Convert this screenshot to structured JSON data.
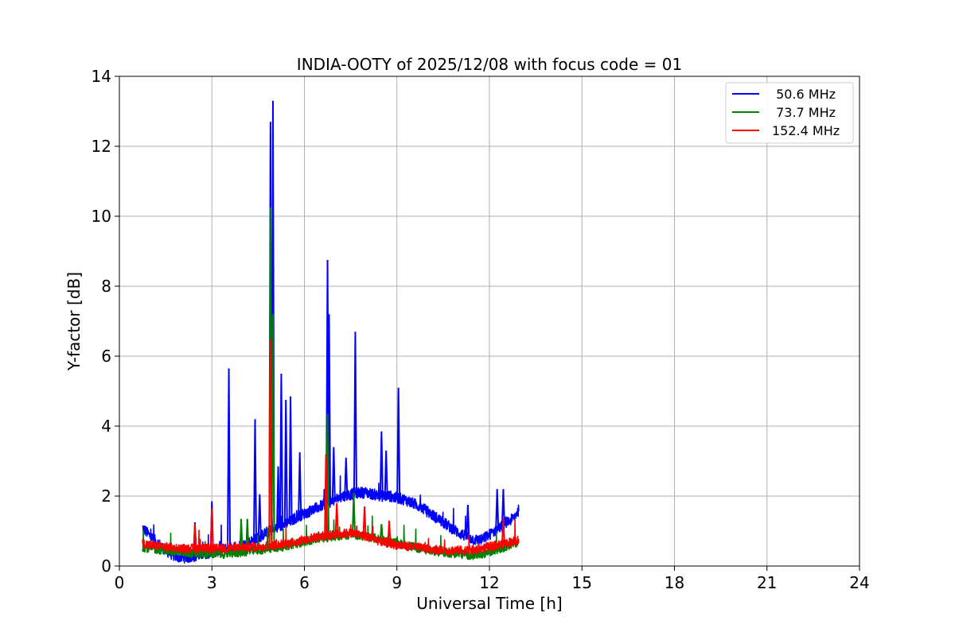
{
  "chart_data": {
    "type": "line",
    "title": "INDIA-OOTY of 2025/12/08 with focus code = 01",
    "xlabel": "Universal Time [h]",
    "ylabel": "Y-factor [dB]",
    "xlim": [
      0,
      24
    ],
    "ylim": [
      0,
      14
    ],
    "xticks": [
      0,
      3,
      6,
      9,
      12,
      15,
      18,
      21,
      24
    ],
    "yticks": [
      0,
      2,
      4,
      6,
      8,
      10,
      12,
      14
    ],
    "grid": true,
    "legend_position": "top-right",
    "series": [
      {
        "name": " 50.6 MHz",
        "color": "#0000ff",
        "x": [
          0.75,
          1.0,
          1.25,
          1.5,
          1.75,
          2.0,
          2.25,
          2.5,
          2.75,
          3.0,
          3.25,
          3.5,
          3.75,
          4.0,
          4.25,
          4.5,
          4.75,
          5.0,
          5.25,
          5.5,
          5.75,
          6.0,
          6.25,
          6.5,
          6.75,
          7.0,
          7.25,
          7.5,
          7.75,
          8.0,
          8.25,
          8.5,
          8.75,
          9.0,
          9.25,
          9.5,
          9.75,
          10.0,
          10.25,
          10.5,
          10.75,
          11.0,
          11.25,
          11.5,
          11.75,
          12.0,
          12.25,
          12.5,
          12.75,
          12.95
        ],
        "y": [
          1.1,
          0.85,
          0.65,
          0.45,
          0.3,
          0.25,
          0.25,
          0.3,
          0.35,
          0.4,
          0.45,
          0.5,
          0.55,
          0.6,
          0.7,
          0.8,
          0.95,
          1.05,
          1.15,
          1.25,
          1.4,
          1.5,
          1.6,
          1.7,
          1.8,
          1.9,
          2.0,
          2.05,
          2.1,
          2.1,
          2.05,
          2.0,
          2.0,
          1.95,
          1.9,
          1.8,
          1.7,
          1.55,
          1.4,
          1.25,
          1.1,
          0.95,
          0.85,
          0.75,
          0.75,
          0.9,
          1.05,
          1.2,
          1.35,
          1.6
        ],
        "spikes": [
          {
            "x": 2.45,
            "y": 1.25
          },
          {
            "x": 3.0,
            "y": 1.85
          },
          {
            "x": 3.55,
            "y": 5.65
          },
          {
            "x": 4.4,
            "y": 4.2
          },
          {
            "x": 4.55,
            "y": 2.05
          },
          {
            "x": 4.9,
            "y": 12.7
          },
          {
            "x": 4.98,
            "y": 13.3
          },
          {
            "x": 5.15,
            "y": 2.85
          },
          {
            "x": 5.25,
            "y": 5.5
          },
          {
            "x": 5.4,
            "y": 4.75
          },
          {
            "x": 5.55,
            "y": 4.85
          },
          {
            "x": 5.85,
            "y": 3.25
          },
          {
            "x": 6.75,
            "y": 8.75
          },
          {
            "x": 6.8,
            "y": 7.2
          },
          {
            "x": 6.95,
            "y": 3.4
          },
          {
            "x": 7.35,
            "y": 3.1
          },
          {
            "x": 7.65,
            "y": 6.7
          },
          {
            "x": 8.5,
            "y": 3.85
          },
          {
            "x": 8.65,
            "y": 3.3
          },
          {
            "x": 9.05,
            "y": 5.1
          },
          {
            "x": 11.3,
            "y": 1.75
          },
          {
            "x": 12.25,
            "y": 2.2
          },
          {
            "x": 12.45,
            "y": 2.2
          }
        ]
      },
      {
        "name": " 73.7 MHz",
        "color": "#008000",
        "x": [
          0.75,
          1.0,
          1.5,
          2.0,
          2.5,
          3.0,
          3.5,
          4.0,
          4.5,
          5.0,
          5.5,
          6.0,
          6.5,
          7.0,
          7.5,
          8.0,
          8.5,
          9.0,
          9.5,
          10.0,
          10.5,
          11.0,
          11.5,
          12.0,
          12.5,
          12.95
        ],
        "y": [
          0.55,
          0.5,
          0.45,
          0.4,
          0.35,
          0.35,
          0.35,
          0.4,
          0.45,
          0.5,
          0.6,
          0.7,
          0.8,
          0.85,
          0.9,
          0.85,
          0.75,
          0.65,
          0.55,
          0.45,
          0.4,
          0.35,
          0.3,
          0.4,
          0.55,
          0.7
        ],
        "spikes": [
          {
            "x": 3.95,
            "y": 1.35
          },
          {
            "x": 4.15,
            "y": 1.35
          },
          {
            "x": 4.9,
            "y": 10.25
          },
          {
            "x": 4.98,
            "y": 7.2
          },
          {
            "x": 6.75,
            "y": 4.35
          },
          {
            "x": 7.6,
            "y": 2.1
          },
          {
            "x": 8.5,
            "y": 1.2
          }
        ]
      },
      {
        "name": "152.4 MHz",
        "color": "#ff0000",
        "x": [
          0.75,
          1.0,
          1.5,
          2.0,
          2.5,
          3.0,
          3.5,
          4.0,
          4.5,
          5.0,
          5.5,
          6.0,
          6.5,
          7.0,
          7.5,
          8.0,
          8.5,
          9.0,
          9.5,
          10.0,
          10.5,
          11.0,
          11.5,
          12.0,
          12.5,
          12.95
        ],
        "y": [
          0.65,
          0.6,
          0.55,
          0.5,
          0.5,
          0.5,
          0.5,
          0.55,
          0.55,
          0.6,
          0.65,
          0.75,
          0.85,
          0.9,
          0.95,
          0.85,
          0.7,
          0.6,
          0.55,
          0.5,
          0.45,
          0.45,
          0.45,
          0.55,
          0.65,
          0.75
        ],
        "spikes": [
          {
            "x": 2.45,
            "y": 1.2
          },
          {
            "x": 3.0,
            "y": 1.65
          },
          {
            "x": 4.9,
            "y": 6.5
          },
          {
            "x": 6.7,
            "y": 3.2
          },
          {
            "x": 7.05,
            "y": 1.8
          },
          {
            "x": 7.95,
            "y": 1.7
          },
          {
            "x": 8.75,
            "y": 1.3
          },
          {
            "x": 12.45,
            "y": 1.35
          }
        ]
      }
    ]
  }
}
